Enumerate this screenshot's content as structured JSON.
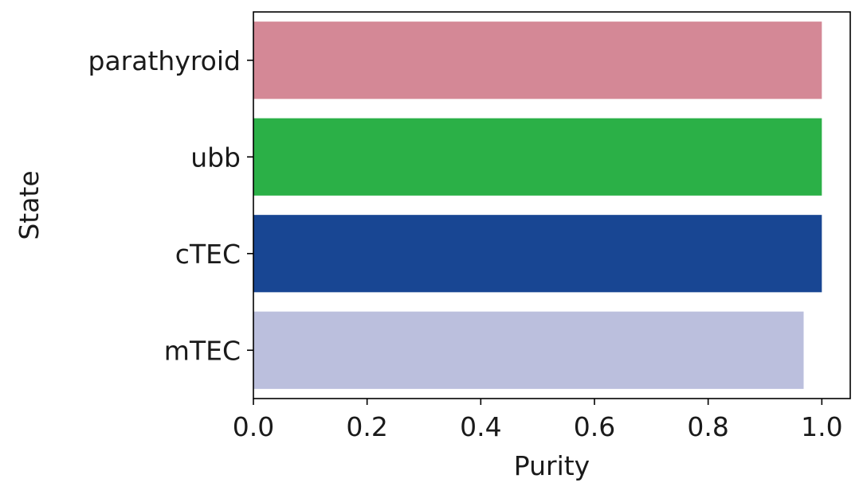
{
  "chart_data": {
    "type": "bar",
    "orientation": "horizontal",
    "categories": [
      "parathyroid",
      "ubb",
      "cTEC",
      "mTEC"
    ],
    "values": [
      1.0,
      1.0,
      1.0,
      0.968
    ],
    "bar_colors": [
      "#d48896",
      "#2bb047",
      "#184693",
      "#bbbfdd"
    ],
    "xlabel": "Purity",
    "ylabel": "State",
    "xlim": [
      0.0,
      1.05
    ],
    "xticks": [
      0.0,
      0.2,
      0.4,
      0.6,
      0.8,
      1.0
    ],
    "xtick_labels": [
      "0.0",
      "0.2",
      "0.4",
      "0.6",
      "0.8",
      "1.0"
    ],
    "grid": false,
    "legend": false
  }
}
